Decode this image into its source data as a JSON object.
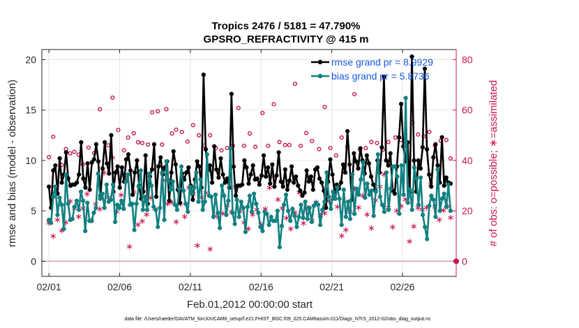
{
  "chart_data": {
    "type": "line",
    "title": "Tropics 2476 / 5181 = 47.790%",
    "subtitle": "GPSRO_REFRACTIVITY @ 415 m",
    "xlabel": "Feb.01,2012 00:00:00 start",
    "ylabel": "rmse and bias (model - observation)",
    "ylabel_right": "# of obs: o=possible; ∗=assimilated",
    "footer": "data file: /Users/raeder/DAI/ATM_forcXX/CAM6_setup/f.e21.FHIST_BGC.f09_025.CAM6assim.011/Diags_NTrS_2012-02/obs_diag_output.nc",
    "xlim": [
      0.5,
      29.8
    ],
    "ylim": [
      -1.5,
      21
    ],
    "ylim_right": [
      -6,
      84
    ],
    "xticks": [
      1,
      6,
      11,
      16,
      21,
      26
    ],
    "xtick_labels": [
      "02/01",
      "02/06",
      "02/11",
      "02/16",
      "02/21",
      "02/26"
    ],
    "yticks": [
      0,
      5,
      10,
      15,
      20
    ],
    "yticks_right": [
      0,
      20,
      40,
      60,
      80
    ],
    "grid": true,
    "legend_position": "top-right",
    "colors": {
      "rmse": "#000000",
      "bias": "#118080",
      "obs": "#c8144f",
      "zero_line": "#c8a0b0"
    },
    "series": [
      {
        "name": "rmse grand pr = 8.9929",
        "values": [
          7.4,
          5.3,
          9.0,
          9.5,
          6.7,
          10.2,
          7.8,
          8.6,
          10.8,
          8.2,
          7.5,
          7.6,
          7.6,
          7.8,
          8.6,
          11.8,
          8.2,
          7.3,
          9.7,
          7.1,
          9.8,
          10.1,
          11.6,
          9.9,
          6.5,
          9.2,
          11.8,
          9.7,
          8.7,
          12.5,
          6.9,
          8.8,
          9.4,
          7.3,
          9.3,
          7.9,
          10.1,
          10.6,
          9.0,
          6.6,
          8.8,
          10.0,
          7.5,
          6.2,
          6.9,
          10.5,
          5.7,
          8.4,
          9.1,
          11.6,
          6.4,
          9.4,
          10.3,
          8.6,
          9.3,
          9.9,
          6.0,
          8.8,
          10.9,
          9.6,
          7.1,
          5.8,
          8.7,
          8.1,
          8.8,
          9.3,
          7.5,
          6.1,
          8.1,
          9.9,
          9.4,
          7.3,
          18.5,
          11.1,
          9.0,
          9.5,
          7.8,
          11.4,
          9.1,
          8.3,
          10.2,
          8.6,
          7.8,
          8.2,
          7.3,
          16.6,
          9.4,
          6.5,
          7.5,
          7.5,
          7.6,
          10.0,
          9.3,
          7.7,
          8.6,
          9.5,
          8.1,
          8.2,
          7.6,
          8.5,
          10.5,
          8.4,
          9.3,
          7.7,
          9.6,
          7.4,
          8.5,
          10.8,
          7.9,
          7.4,
          9.1,
          7.1,
          8.0,
          9.4,
          7.8,
          8.4,
          7.5,
          7.0,
          6.5,
          6.8,
          9.0,
          7.9,
          8.4,
          7.1,
          9.1,
          9.3,
          8.2,
          7.8,
          7.0,
          5.3,
          7.9,
          10.1,
          8.6,
          6.9,
          7.6,
          7.2,
          7.8,
          9.6,
          8.8,
          12.9,
          9.6,
          6.1,
          10.7,
          9.9,
          9.2,
          11.2,
          10.0,
          8.7,
          10.5,
          9.7,
          8.4,
          7.6,
          7.1,
          10.0,
          8.8,
          11.3,
          18.3,
          10.0,
          9.5,
          10.7,
          7.0,
          6.7,
          9.4,
          12.3,
          15.6,
          11.4,
          9.9,
          11.8,
          6.8,
          20.3,
          10.0,
          6.9,
          10.0,
          9.2,
          11.3,
          19.1,
          11.1,
          8.6,
          7.4,
          10.3,
          11.6,
          9.5,
          7.8,
          12.3,
          7.5,
          8.3,
          7.8,
          7.7
        ]
      },
      {
        "name": "bias grand pr = 5.8736",
        "values": [
          4.1,
          3.8,
          6.4,
          7.4,
          4.6,
          6.3,
          5.6,
          3.2,
          8.6,
          5.7,
          4.1,
          4.2,
          5.4,
          6.0,
          5.1,
          6.9,
          6.0,
          3.0,
          5.8,
          4.0,
          4.0,
          4.8,
          5.3,
          8.7,
          6.2,
          6.7,
          5.3,
          7.6,
          5.9,
          6.1,
          7.6,
          3.9,
          5.6,
          5.3,
          6.0,
          5.2,
          7.9,
          8.6,
          5.6,
          5.7,
          3.1,
          5.7,
          7.4,
          9.0,
          5.1,
          6.4,
          5.1,
          8.7,
          7.5,
          5.4,
          5.1,
          3.4,
          5.3,
          8.8,
          4.1,
          9.9,
          8.0,
          7.1,
          7.9,
          5.6,
          5.1,
          7.2,
          9.4,
          7.0,
          5.7,
          4.9,
          7.4,
          6.7,
          7.3,
          8.8,
          5.9,
          8.1,
          5.1,
          5.9,
          10.6,
          6.5,
          6.4,
          4.4,
          6.6,
          4.8,
          3.3,
          7.5,
          6.5,
          4.6,
          6.0,
          11.2,
          4.8,
          3.7,
          6.1,
          4.4,
          5.9,
          5.3,
          2.9,
          5.4,
          6.5,
          4.9,
          6.7,
          5.7,
          4.8,
          3.4,
          3.0,
          4.9,
          4.7,
          3.6,
          4.4,
          4.0,
          4.0,
          5.0,
          1.4,
          3.5,
          5.6,
          6.6,
          5.0,
          4.0,
          5.2,
          4.5,
          3.4,
          4.4,
          5.6,
          4.3,
          5.9,
          4.2,
          5.3,
          3.9,
          5.5,
          5.8,
          5.6,
          3.6,
          5.1,
          5.9,
          8.8,
          6.4,
          5.2,
          6.9,
          6.2,
          7.3,
          6.2,
          3.6,
          7.1,
          4.4,
          5.9,
          4.2,
          8.6,
          4.7,
          7.2,
          6.6,
          8.1,
          9.8,
          6.3,
          7.7,
          6.6,
          7.0,
          4.5,
          6.9,
          10.6,
          6.4,
          5.6,
          4.9,
          8.8,
          5.1,
          7.2,
          9.4,
          9.4,
          8.4,
          4.7,
          9.5,
          6.6,
          16.2,
          5.8,
          7.1,
          5.1,
          9.3,
          8.2,
          5.6,
          8.3,
          4.6,
          3.4,
          2.2,
          5.5,
          6.5,
          6.1,
          4.4,
          9.1,
          5.0,
          6.2,
          6.7,
          5.4,
          7.6,
          5.0
        ]
      }
    ],
    "obs_possible": [
      {
        "x": 1.0,
        "y": 41.3
      },
      {
        "x": 1.3,
        "y": 49.4
      },
      {
        "x": 1.9,
        "y": 38.2
      },
      {
        "x": 2.2,
        "y": 44.5
      },
      {
        "x": 2.5,
        "y": 42.8
      },
      {
        "x": 2.8,
        "y": 43.4
      },
      {
        "x": 3.1,
        "y": 42.3
      },
      {
        "x": 3.4,
        "y": 38.5
      },
      {
        "x": 3.8,
        "y": 45.1
      },
      {
        "x": 4.2,
        "y": 42.9
      },
      {
        "x": 4.6,
        "y": 60.3
      },
      {
        "x": 5.2,
        "y": 46.0
      },
      {
        "x": 5.5,
        "y": 64.9
      },
      {
        "x": 5.9,
        "y": 52.1
      },
      {
        "x": 6.3,
        "y": 44.0
      },
      {
        "x": 6.6,
        "y": 49.1
      },
      {
        "x": 7.0,
        "y": 50.8
      },
      {
        "x": 7.3,
        "y": 47.2
      },
      {
        "x": 7.6,
        "y": 46.9
      },
      {
        "x": 8.0,
        "y": 46.3
      },
      {
        "x": 8.3,
        "y": 59.1
      },
      {
        "x": 8.7,
        "y": 59.5
      },
      {
        "x": 9.0,
        "y": 46.3
      },
      {
        "x": 9.3,
        "y": 60.3
      },
      {
        "x": 9.7,
        "y": 50.7
      },
      {
        "x": 10.0,
        "y": 52.2
      },
      {
        "x": 10.4,
        "y": 51.3
      },
      {
        "x": 10.8,
        "y": 47.5
      },
      {
        "x": 11.2,
        "y": 54.0
      },
      {
        "x": 11.6,
        "y": 50.0
      },
      {
        "x": 12.0,
        "y": 45.9
      },
      {
        "x": 12.4,
        "y": 50.0
      },
      {
        "x": 12.8,
        "y": 44.9
      },
      {
        "x": 13.2,
        "y": 44.0
      },
      {
        "x": 13.6,
        "y": 44.9
      },
      {
        "x": 14.0,
        "y": 45.8
      },
      {
        "x": 14.4,
        "y": 60.8
      },
      {
        "x": 14.8,
        "y": 45.8
      },
      {
        "x": 15.2,
        "y": 50.7
      },
      {
        "x": 15.6,
        "y": 45.4
      },
      {
        "x": 16.1,
        "y": 58.8
      },
      {
        "x": 16.5,
        "y": 45.8
      },
      {
        "x": 16.9,
        "y": 62.3
      },
      {
        "x": 17.3,
        "y": 47.3
      },
      {
        "x": 17.7,
        "y": 46.1
      },
      {
        "x": 18.0,
        "y": 46.1
      },
      {
        "x": 18.4,
        "y": 70.4
      },
      {
        "x": 18.8,
        "y": 45.8
      },
      {
        "x": 19.2,
        "y": 50.9
      },
      {
        "x": 19.6,
        "y": 47.7
      },
      {
        "x": 20.1,
        "y": 44.5
      },
      {
        "x": 20.5,
        "y": 61.2
      },
      {
        "x": 20.9,
        "y": 44.9
      },
      {
        "x": 21.3,
        "y": 42.0
      },
      {
        "x": 21.7,
        "y": 49.1
      },
      {
        "x": 22.1,
        "y": 45.4
      },
      {
        "x": 22.6,
        "y": 66.3
      },
      {
        "x": 23.0,
        "y": 44.2
      },
      {
        "x": 23.4,
        "y": 44.9
      },
      {
        "x": 23.8,
        "y": 47.3
      },
      {
        "x": 24.2,
        "y": 46.9
      },
      {
        "x": 24.6,
        "y": 44.2
      },
      {
        "x": 25.0,
        "y": 47.3
      },
      {
        "x": 25.5,
        "y": 49.1
      },
      {
        "x": 25.9,
        "y": 48.1
      },
      {
        "x": 26.3,
        "y": 45.8
      },
      {
        "x": 26.7,
        "y": 55.0
      },
      {
        "x": 27.1,
        "y": 50.3
      },
      {
        "x": 27.5,
        "y": 49.6
      },
      {
        "x": 27.9,
        "y": 51.3
      },
      {
        "x": 28.3,
        "y": 45.9
      },
      {
        "x": 28.7,
        "y": 47.8
      },
      {
        "x": 29.1,
        "y": 48.1
      },
      {
        "x": 29.4,
        "y": 40.8
      }
    ],
    "obs_assimilated": [
      {
        "x": 1.0,
        "y": 15.5
      },
      {
        "x": 1.3,
        "y": 10.2
      },
      {
        "x": 1.6,
        "y": 16.7
      },
      {
        "x": 1.9,
        "y": 12.4
      },
      {
        "x": 2.2,
        "y": 15.6
      },
      {
        "x": 2.5,
        "y": 24.1
      },
      {
        "x": 2.8,
        "y": 21.3
      },
      {
        "x": 3.1,
        "y": 18.0
      },
      {
        "x": 3.4,
        "y": 21.3
      },
      {
        "x": 3.7,
        "y": 27.0
      },
      {
        "x": 4.0,
        "y": 16.5
      },
      {
        "x": 4.3,
        "y": 22.9
      },
      {
        "x": 4.6,
        "y": 21.0
      },
      {
        "x": 4.9,
        "y": 35.4
      },
      {
        "x": 5.2,
        "y": 25.6
      },
      {
        "x": 5.5,
        "y": 41.4
      },
      {
        "x": 5.8,
        "y": 19.9
      },
      {
        "x": 6.1,
        "y": 26.5
      },
      {
        "x": 6.4,
        "y": 33.7
      },
      {
        "x": 6.7,
        "y": 6.1
      },
      {
        "x": 7.0,
        "y": 27.8
      },
      {
        "x": 7.3,
        "y": 14.8
      },
      {
        "x": 7.6,
        "y": 16.2
      },
      {
        "x": 7.9,
        "y": 18.8
      },
      {
        "x": 8.2,
        "y": 25.5
      },
      {
        "x": 8.5,
        "y": 21.0
      },
      {
        "x": 8.8,
        "y": 38.1
      },
      {
        "x": 9.1,
        "y": 32.4
      },
      {
        "x": 9.4,
        "y": 23.1
      },
      {
        "x": 9.7,
        "y": 23.6
      },
      {
        "x": 10.0,
        "y": 15.9
      },
      {
        "x": 10.3,
        "y": 22.9
      },
      {
        "x": 10.6,
        "y": 18.0
      },
      {
        "x": 10.9,
        "y": 29.3
      },
      {
        "x": 11.2,
        "y": 27.0
      },
      {
        "x": 11.5,
        "y": 6.4
      },
      {
        "x": 11.8,
        "y": 25.6
      },
      {
        "x": 12.1,
        "y": 27.4
      },
      {
        "x": 12.4,
        "y": 5.1
      },
      {
        "x": 12.7,
        "y": 18.3
      },
      {
        "x": 13.0,
        "y": 17.7
      },
      {
        "x": 13.3,
        "y": 19.2
      },
      {
        "x": 13.6,
        "y": 22.4
      },
      {
        "x": 13.9,
        "y": 19.8
      },
      {
        "x": 14.2,
        "y": 29.7
      },
      {
        "x": 14.5,
        "y": 20.0
      },
      {
        "x": 14.8,
        "y": 15.6
      },
      {
        "x": 15.1,
        "y": 13.1
      },
      {
        "x": 15.4,
        "y": 18.8
      },
      {
        "x": 15.7,
        "y": 20.7
      },
      {
        "x": 16.0,
        "y": 14.8
      },
      {
        "x": 16.3,
        "y": 21.0
      },
      {
        "x": 16.6,
        "y": 29.4
      },
      {
        "x": 16.9,
        "y": 33.9
      },
      {
        "x": 17.2,
        "y": 24.8
      },
      {
        "x": 17.5,
        "y": 21.3
      },
      {
        "x": 17.8,
        "y": 17.4
      },
      {
        "x": 18.1,
        "y": 13.1
      },
      {
        "x": 18.4,
        "y": 19.5
      },
      {
        "x": 18.7,
        "y": 27.5
      },
      {
        "x": 19.0,
        "y": 15.3
      },
      {
        "x": 19.3,
        "y": 21.6
      },
      {
        "x": 19.6,
        "y": 16.4
      },
      {
        "x": 19.9,
        "y": 23.7
      },
      {
        "x": 20.2,
        "y": 18.4
      },
      {
        "x": 20.5,
        "y": 19.4
      },
      {
        "x": 20.8,
        "y": 24.2
      },
      {
        "x": 21.1,
        "y": 25.4
      },
      {
        "x": 21.4,
        "y": 21.9
      },
      {
        "x": 21.7,
        "y": 10.3
      },
      {
        "x": 22.0,
        "y": 12.7
      },
      {
        "x": 22.3,
        "y": 19.8
      },
      {
        "x": 22.6,
        "y": 29.1
      },
      {
        "x": 22.9,
        "y": 21.6
      },
      {
        "x": 23.2,
        "y": 26.3
      },
      {
        "x": 23.5,
        "y": 18.8
      },
      {
        "x": 23.8,
        "y": 13.4
      },
      {
        "x": 24.1,
        "y": 24.5
      },
      {
        "x": 24.4,
        "y": 29.9
      },
      {
        "x": 24.7,
        "y": 34.7
      },
      {
        "x": 25.0,
        "y": 21.6
      },
      {
        "x": 25.3,
        "y": 13.8
      },
      {
        "x": 25.6,
        "y": 20.3
      },
      {
        "x": 25.9,
        "y": 22.1
      },
      {
        "x": 26.2,
        "y": 24.8
      },
      {
        "x": 26.5,
        "y": 8.1
      },
      {
        "x": 26.8,
        "y": 14.1
      },
      {
        "x": 27.1,
        "y": 21.4
      },
      {
        "x": 27.4,
        "y": 20.7
      },
      {
        "x": 27.7,
        "y": 21.6
      },
      {
        "x": 28.0,
        "y": 30.8
      },
      {
        "x": 28.3,
        "y": 21.8
      },
      {
        "x": 28.6,
        "y": 16.7
      },
      {
        "x": 28.9,
        "y": 20.4
      },
      {
        "x": 29.2,
        "y": 22.0
      },
      {
        "x": 29.4,
        "y": 17.5
      }
    ],
    "zero_line_markers": [
      {
        "x": 29.8,
        "y": 0
      }
    ]
  }
}
